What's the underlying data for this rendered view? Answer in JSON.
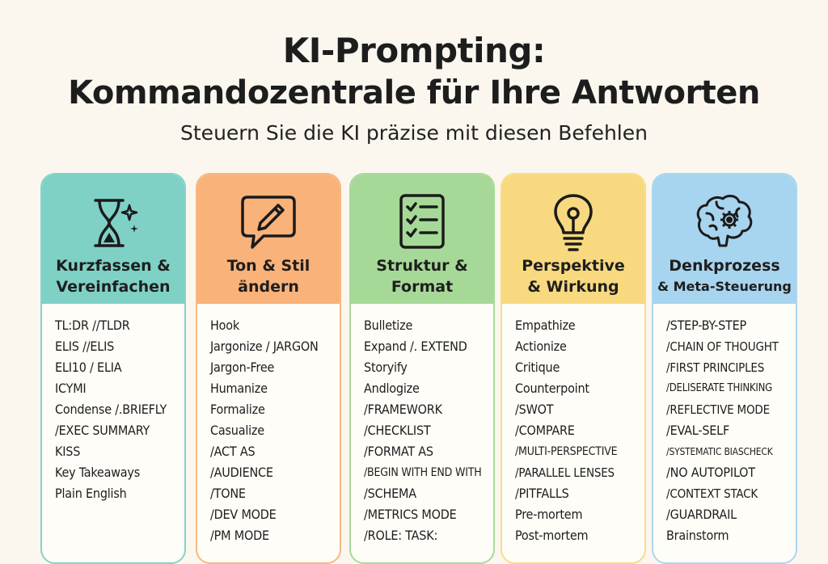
{
  "header": {
    "title_line1": "KI-Prompting:",
    "title_line2": "Kommandozentrale für Ihre Antworten",
    "subtitle": "Steuern Sie die KI präzise mit diesen Befehlen"
  },
  "cards": [
    {
      "icon": "hourglass-sparkle-icon",
      "color": "#7fd1c6",
      "title_line1": "Kurzfassen &",
      "title_line2": "Vereinfachen",
      "items": [
        "TL:DR //TLDR",
        "ELIS //ELIS",
        "ELI10 / ELIA",
        "ICYMI",
        "Condense /.BRIEFLY",
        "/EXEC SUMMARY",
        "KISS",
        "Key Takeaways",
        "Plain English"
      ]
    },
    {
      "icon": "speech-bubble-pencil-icon",
      "color": "#f9b27a",
      "title_line1": "Ton & Stil",
      "title_line2": "ändern",
      "items": [
        "Hook",
        "Jargonize / JARGON",
        "Jargon-Free",
        "Humanize",
        "Formalize",
        "Casualize",
        "/ACT AS",
        "/AUDIENCE",
        "/TONE",
        "/DEV MODE",
        "/PM MODE"
      ]
    },
    {
      "icon": "checklist-icon",
      "color": "#a6d997",
      "title_line1": "Struktur &",
      "title_line2": "Format",
      "items": [
        "Bulletize",
        "Expand /. EXTEND",
        "Storyify",
        "Andlogize",
        "/FRAMEWORK",
        "/CHECKLIST",
        "/FORMAT AS",
        "/BEGIN WITH END WITH",
        "/SCHEMA",
        "/METRICS MODE",
        "/ROLE: TASK:"
      ]
    },
    {
      "icon": "lightbulb-icon",
      "color": "#f8d980",
      "title_line1": "Perspektive",
      "title_line2": "& Wirkung",
      "items": [
        "Empathize",
        "Actionize",
        "Critique",
        "Counterpoint",
        "/SWOT",
        "/COMPARE",
        "/MULTI-PERSPECTIVE",
        "/PARALLEL LENSES",
        "/PITFALLS",
        "Pre-mortem",
        "Post-mortem"
      ]
    },
    {
      "icon": "brain-gear-icon",
      "color": "#a7d4ee",
      "title_line1": "Denkprozess",
      "title_line2": "& Meta-Steuerung",
      "items": [
        "/STEP-BY-STEP",
        "/CHAIN OF THOUGHT",
        "/FIRST PRINCIPLES",
        "/DELISERATE THINKING",
        "/REFLECTIVE MODE",
        "/EVAL-SELF",
        "/SYSTEMATIC BIASCHECK",
        "/NO AUTOPILOT",
        "/CONTEXT STACK",
        "/GUARDRAIL",
        "Brainstorm"
      ]
    }
  ]
}
